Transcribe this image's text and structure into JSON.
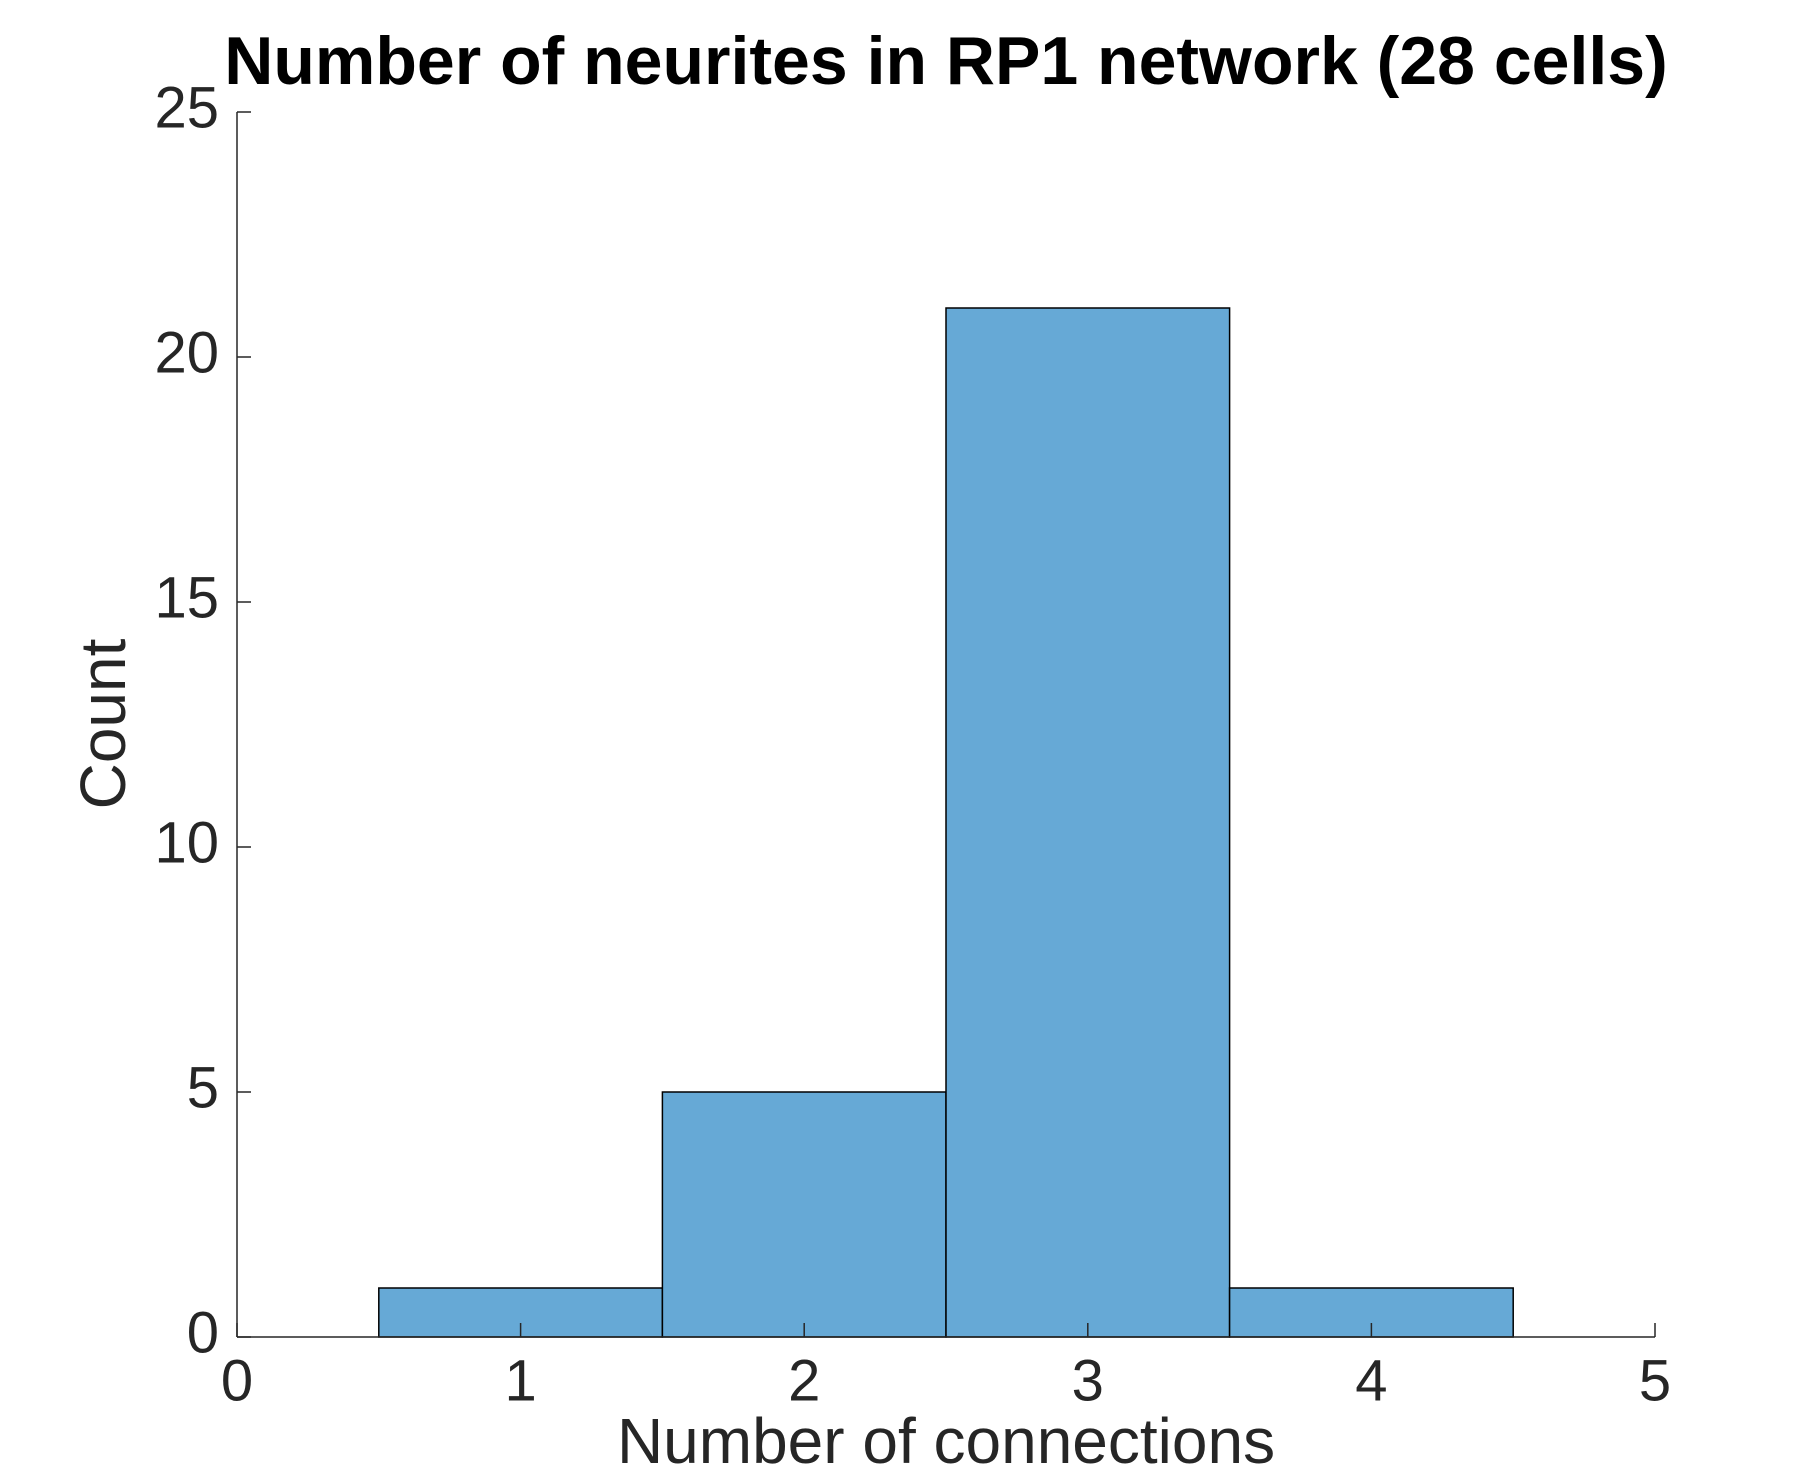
{
  "chart_data": {
    "type": "bar",
    "subtype": "histogram",
    "title": "Number of neurites in RP1 network (28 cells)",
    "xlabel": "Number of connections",
    "ylabel": "Count",
    "xlim": [
      0,
      5
    ],
    "ylim": [
      0,
      25
    ],
    "x_ticks": [
      0,
      1,
      2,
      3,
      4,
      5
    ],
    "y_ticks": [
      0,
      5,
      10,
      15,
      20,
      25
    ],
    "bin_edges": [
      0.5,
      1.5,
      2.5,
      3.5,
      4.5
    ],
    "categories": [
      "1",
      "2",
      "3",
      "4"
    ],
    "values": [
      1,
      5,
      21,
      1
    ],
    "bar_color": "#66A9D6",
    "edge_color": "#000000",
    "grid": false,
    "legend": "none"
  }
}
